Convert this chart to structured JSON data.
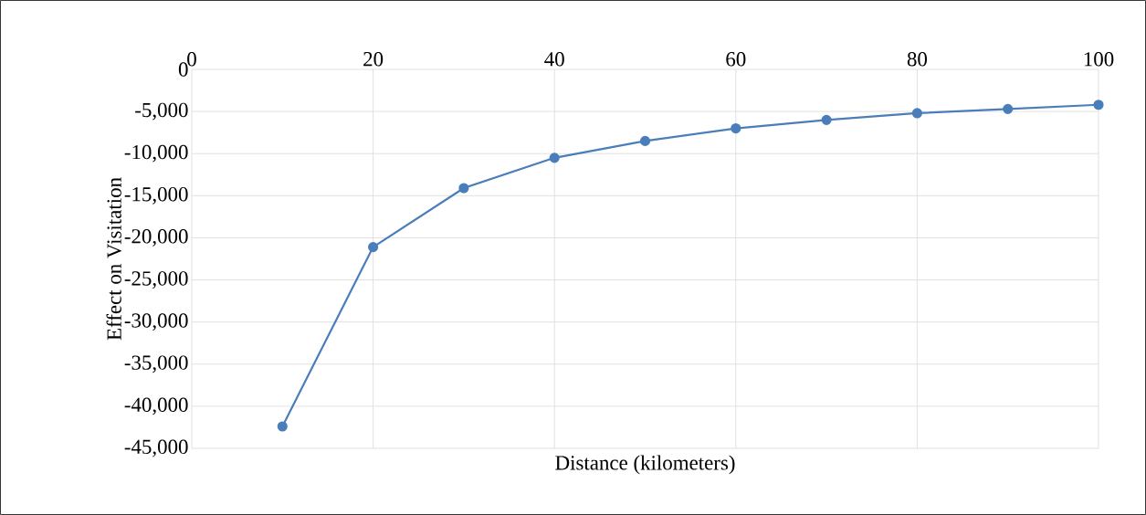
{
  "chart_data": {
    "type": "line",
    "xlabel": "Distance (kilometers)",
    "ylabel": "Effect on Visitation",
    "x": [
      10,
      20,
      30,
      40,
      50,
      60,
      70,
      80,
      90,
      100
    ],
    "series": [
      {
        "color": "#4a7ebb",
        "values": [
          -42400,
          -21100,
          -14100,
          -10500,
          -8500,
          -7000,
          -6000,
          -5200,
          -4700,
          -4200
        ]
      }
    ],
    "xlim": [
      0,
      100
    ],
    "xticks": [
      0,
      20,
      40,
      60,
      80,
      100
    ],
    "ylim": [
      -45000,
      0
    ],
    "yticks": [
      0,
      {
        "value": -5000,
        "label": "-5,000"
      },
      {
        "value": -10000,
        "label": "-10,000"
      },
      {
        "value": -15000,
        "label": "-15,000"
      },
      {
        "value": -20000,
        "label": "-20,000"
      },
      {
        "value": -25000,
        "label": "-25,000"
      },
      {
        "value": -30000,
        "label": "-30,000"
      },
      {
        "value": -35000,
        "label": "-35,000"
      },
      {
        "value": -40000,
        "label": "-40,000"
      },
      {
        "value": -45000,
        "label": "-45,000"
      }
    ],
    "grid": true,
    "marker": "circle",
    "line_style": "solid"
  }
}
